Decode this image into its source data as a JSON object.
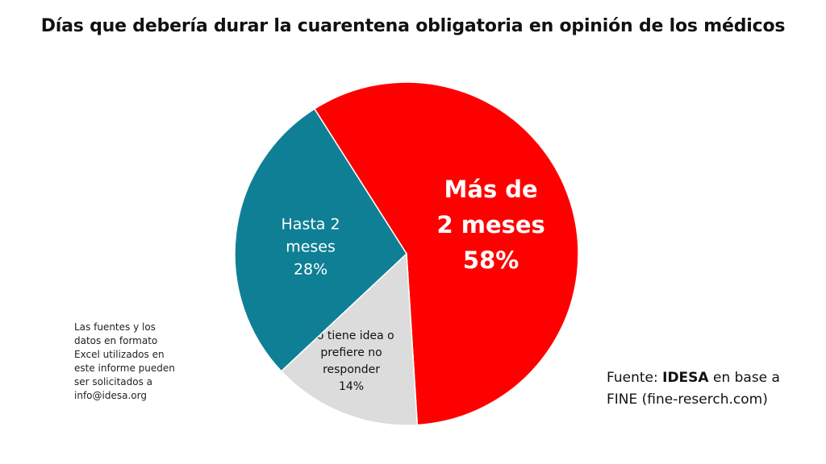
{
  "chart_data": {
    "type": "pie",
    "title": "Días que debería durar la cuarentena obligatoria en opinión de los médicos",
    "slices": [
      {
        "label_lines": [
          "Más de",
          "2 meses"
        ],
        "value": 58,
        "value_label": "58%",
        "color": "#ff0000",
        "text_color": "#ffffff"
      },
      {
        "label_lines": [
          "No tiene idea o",
          "prefiere no",
          "responder"
        ],
        "value": 14,
        "value_label": "14%",
        "color": "#dcdcdc",
        "text_color": "#111111"
      },
      {
        "label_lines": [
          "Hasta 2",
          "meses"
        ],
        "value": 28,
        "value_label": "28%",
        "color": "#0f7f96",
        "text_color": "#ffffff"
      }
    ]
  },
  "note": "Las fuentes y los\ndatos en formato\nExcel utilizados en\neste informe pueden\nser solicitados a\ninfo@idesa.org",
  "source": {
    "prefix": "Fuente: ",
    "brand": "IDESA",
    "suffix": " en base a",
    "line2": "FINE (fine-reserch.com)"
  }
}
